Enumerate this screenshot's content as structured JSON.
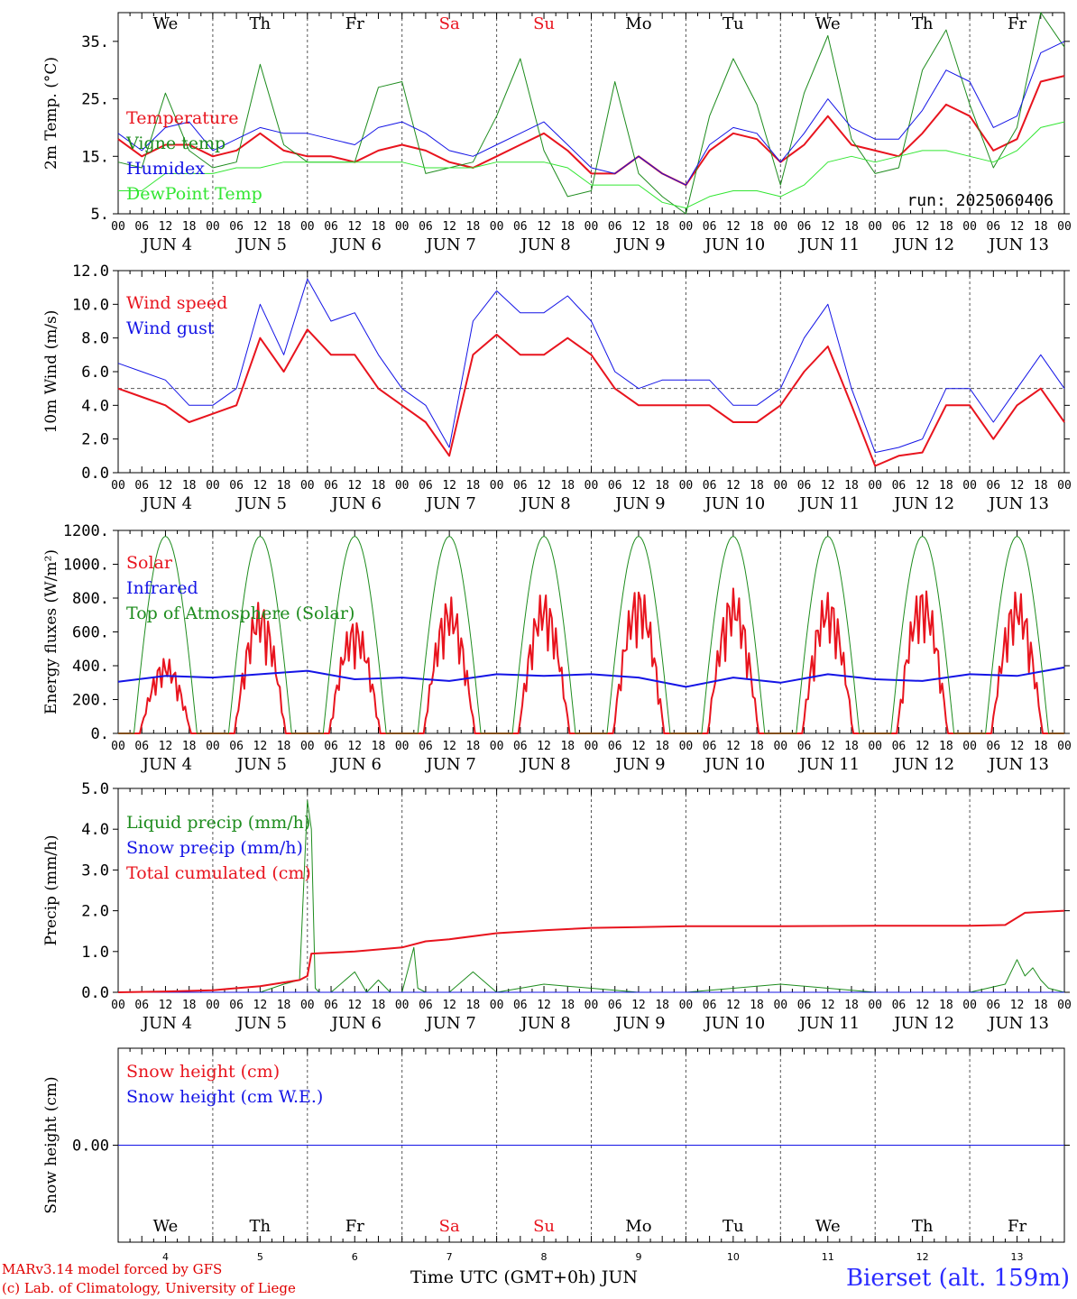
{
  "colors": {
    "red": "#e8141e",
    "green": "#1e8c1e",
    "blue": "#1414e6",
    "lightgreen": "#32e632",
    "axis": "#000000",
    "weekend": "#e8141e"
  },
  "days": [
    "We",
    "Th",
    "Fr",
    "Sa",
    "Su",
    "Mo",
    "Tu",
    "We",
    "Th",
    "Fr"
  ],
  "weekend_days": [
    3,
    4
  ],
  "hour_ticks": [
    "00",
    "06",
    "12",
    "18"
  ],
  "date_labels": [
    "JUN  4",
    "JUN  5",
    "JUN  6",
    "JUN  7",
    "JUN  8",
    "JUN  9",
    "JUN 10",
    "JUN 11",
    "JUN 12",
    "JUN 13"
  ],
  "bottom_day_numbers": [
    "4",
    "5",
    "6",
    "7",
    "8",
    "9",
    "10",
    "11",
    "12",
    "13"
  ],
  "footer": {
    "credit_line1": "MARv3.14 model forced by GFS",
    "credit_line2": "(c) Lab. of Climatology, University of Liege",
    "xlabel": "Time UTC (GMT+0h)",
    "month": "JUN",
    "station": "Bierset (alt. 159m)"
  },
  "chart_data": [
    {
      "type": "line",
      "ylabel": "2m Temp. (°C)",
      "ylim": [
        5,
        40
      ],
      "yticks": [
        5,
        15,
        25,
        35
      ],
      "ytick_labels": [
        "5.",
        "15.",
        "25.",
        "35."
      ],
      "annotation": "run: 2025060406",
      "x_unit": "hours since 2025-06-04 00 UTC",
      "series": [
        {
          "name": "Temperature",
          "color": "red",
          "width": 2,
          "x": [
            0,
            6,
            12,
            18,
            24,
            30,
            36,
            42,
            48,
            54,
            60,
            66,
            72,
            78,
            84,
            90,
            96,
            102,
            108,
            114,
            120,
            126,
            132,
            138,
            144,
            150,
            156,
            162,
            168,
            174,
            180,
            186,
            192,
            198,
            204,
            210,
            216,
            222,
            228,
            234,
            240
          ],
          "values": [
            18,
            15,
            17,
            17,
            15,
            16,
            19,
            16,
            15,
            15,
            14,
            16,
            17,
            16,
            14,
            13,
            15,
            17,
            19,
            16,
            12,
            12,
            15,
            12,
            10,
            16,
            19,
            18,
            14,
            17,
            22,
            17,
            16,
            15,
            19,
            24,
            22,
            16,
            18,
            28,
            29
          ]
        },
        {
          "name": "Vigne temp",
          "color": "green",
          "width": 1,
          "x": [
            0,
            6,
            12,
            18,
            24,
            30,
            36,
            42,
            48,
            54,
            60,
            66,
            72,
            78,
            84,
            90,
            96,
            102,
            108,
            114,
            120,
            126,
            132,
            138,
            144,
            150,
            156,
            162,
            168,
            174,
            180,
            186,
            192,
            198,
            204,
            210,
            216,
            222,
            228,
            234,
            240
          ],
          "values": [
            14,
            13,
            26,
            16,
            13,
            14,
            31,
            17,
            14,
            14,
            14,
            27,
            28,
            12,
            13,
            14,
            22,
            32,
            16,
            8,
            9,
            28,
            12,
            8,
            5,
            22,
            32,
            24,
            10,
            26,
            36,
            18,
            12,
            13,
            30,
            37,
            24,
            13,
            20,
            40,
            34
          ]
        },
        {
          "name": "Humidex",
          "color": "blue",
          "width": 1,
          "x": [
            0,
            6,
            12,
            18,
            24,
            30,
            36,
            42,
            48,
            54,
            60,
            66,
            72,
            78,
            84,
            90,
            96,
            102,
            108,
            114,
            120,
            126,
            132,
            138,
            144,
            150,
            156,
            162,
            168,
            174,
            180,
            186,
            192,
            198,
            204,
            210,
            216,
            222,
            228,
            234,
            240
          ],
          "values": [
            19,
            16,
            20,
            21,
            16,
            18,
            20,
            19,
            19,
            18,
            17,
            20,
            21,
            19,
            16,
            15,
            17,
            19,
            21,
            17,
            13,
            12,
            15,
            12,
            10,
            17,
            20,
            19,
            14,
            19,
            25,
            20,
            18,
            18,
            23,
            30,
            28,
            20,
            22,
            33,
            35
          ]
        },
        {
          "name": "DewPoint Temp",
          "color": "lightgreen",
          "width": 1,
          "x": [
            0,
            6,
            12,
            18,
            24,
            30,
            36,
            42,
            48,
            54,
            60,
            66,
            72,
            78,
            84,
            90,
            96,
            102,
            108,
            114,
            120,
            126,
            132,
            138,
            144,
            150,
            156,
            162,
            168,
            174,
            180,
            186,
            192,
            198,
            204,
            210,
            216,
            222,
            228,
            234,
            240
          ],
          "values": [
            9,
            9,
            12,
            12,
            12,
            13,
            13,
            14,
            14,
            14,
            14,
            14,
            14,
            13,
            13,
            13,
            14,
            14,
            14,
            13,
            10,
            10,
            10,
            7,
            6,
            8,
            9,
            9,
            8,
            10,
            14,
            15,
            14,
            15,
            16,
            16,
            15,
            14,
            16,
            20,
            21
          ]
        }
      ]
    },
    {
      "type": "line",
      "ylabel": "10m Wind (m/s)",
      "ylim": [
        0,
        12
      ],
      "yticks": [
        0,
        2,
        4,
        6,
        8,
        10,
        12
      ],
      "ytick_labels": [
        "0.0",
        "2.0",
        "4.0",
        "6.0",
        "8.0",
        "10.0",
        "12.0"
      ],
      "reference_line": 5,
      "series": [
        {
          "name": "Wind speed",
          "color": "red",
          "width": 2,
          "x": [
            0,
            6,
            12,
            18,
            24,
            30,
            36,
            42,
            48,
            54,
            60,
            66,
            72,
            78,
            84,
            90,
            96,
            102,
            108,
            114,
            120,
            126,
            132,
            138,
            144,
            150,
            156,
            162,
            168,
            174,
            180,
            186,
            192,
            198,
            204,
            210,
            216,
            222,
            228,
            234,
            240
          ],
          "values": [
            5,
            4.5,
            4,
            3,
            3.5,
            4,
            8,
            6,
            8.5,
            7,
            7,
            5,
            4,
            3,
            1,
            7,
            8.2,
            7,
            7,
            8,
            7,
            5,
            4,
            4,
            4,
            4,
            3,
            3,
            4,
            6,
            7.5,
            4,
            0.4,
            1,
            1.2,
            4,
            4,
            2,
            4,
            5,
            3
          ]
        },
        {
          "name": "Wind gust",
          "color": "blue",
          "width": 1,
          "x": [
            0,
            6,
            12,
            18,
            24,
            30,
            36,
            42,
            48,
            54,
            60,
            66,
            72,
            78,
            84,
            90,
            96,
            102,
            108,
            114,
            120,
            126,
            132,
            138,
            144,
            150,
            156,
            162,
            168,
            174,
            180,
            186,
            192,
            198,
            204,
            210,
            216,
            222,
            228,
            234,
            240
          ],
          "values": [
            6.5,
            6,
            5.5,
            4,
            4,
            5,
            10,
            7,
            11.5,
            9,
            9.5,
            7,
            5,
            4,
            1.5,
            9,
            10.8,
            9.5,
            9.5,
            10.5,
            9,
            6,
            5,
            5.5,
            5.5,
            5.5,
            4,
            4,
            5,
            8,
            10,
            5,
            1.2,
            1.5,
            2,
            5,
            5,
            3,
            5,
            7,
            5
          ]
        }
      ]
    },
    {
      "type": "line",
      "ylabel": "Energy fluxes (W/m²)",
      "ylim": [
        0,
        1200
      ],
      "yticks": [
        0,
        200,
        400,
        600,
        800,
        1000,
        1200
      ],
      "ytick_labels": [
        "0.",
        "200.",
        "400.",
        "600.",
        "800.",
        "1000.",
        "1200."
      ],
      "series": [
        {
          "name": "Solar",
          "color": "red",
          "width": 2,
          "daily_peaks": [
            450,
            780,
            680,
            810,
            840,
            880,
            860,
            840,
            880,
            850
          ]
        },
        {
          "name": "Infrared",
          "color": "blue",
          "width": 2,
          "x": [
            0,
            12,
            24,
            36,
            48,
            60,
            72,
            84,
            96,
            108,
            120,
            132,
            144,
            156,
            168,
            180,
            192,
            204,
            216,
            228,
            240
          ],
          "values": [
            305,
            340,
            330,
            350,
            370,
            320,
            330,
            310,
            350,
            340,
            350,
            330,
            275,
            330,
            300,
            350,
            320,
            310,
            350,
            340,
            390
          ]
        },
        {
          "name": "Top of Atmosphere (Solar)",
          "color": "green",
          "width": 1,
          "daily_peaks": [
            1165,
            1165,
            1165,
            1165,
            1165,
            1165,
            1165,
            1165,
            1165,
            1165
          ]
        }
      ]
    },
    {
      "type": "line",
      "ylabel": "Precip (mm/h)",
      "ylim": [
        0,
        5
      ],
      "yticks": [
        0,
        1,
        2,
        3,
        4,
        5
      ],
      "ytick_labels": [
        "0.0",
        "1.0",
        "2.0",
        "3.0",
        "4.0",
        "5.0"
      ],
      "series": [
        {
          "name": "Liquid precip (mm/h)",
          "color": "green",
          "width": 1,
          "x": [
            0,
            36,
            42,
            46,
            48,
            49,
            50,
            51,
            54,
            60,
            63,
            66,
            69,
            72,
            75,
            76,
            78,
            80,
            84,
            90,
            96,
            108,
            120,
            132,
            144,
            168,
            192,
            216,
            225,
            228,
            230,
            232,
            234,
            236,
            240
          ],
          "values": [
            0,
            0,
            0.2,
            0.3,
            4.7,
            4.0,
            0.1,
            0,
            0,
            0.5,
            0,
            0.3,
            0,
            0,
            1.1,
            0.1,
            0,
            0,
            0,
            0.5,
            0,
            0.2,
            0.1,
            0,
            0,
            0.2,
            0,
            0,
            0.2,
            0.8,
            0.4,
            0.6,
            0.3,
            0.1,
            0
          ]
        },
        {
          "name": "Snow precip (mm/h)",
          "color": "blue",
          "width": 1,
          "x": [
            0,
            240
          ],
          "values": [
            0,
            0
          ]
        },
        {
          "name": "Total cumulated (cm)",
          "color": "red",
          "width": 2,
          "x": [
            0,
            12,
            24,
            36,
            46,
            48,
            49,
            60,
            72,
            78,
            84,
            96,
            108,
            120,
            132,
            144,
            168,
            192,
            216,
            225,
            230,
            240
          ],
          "values": [
            0,
            0.02,
            0.05,
            0.15,
            0.3,
            0.4,
            0.95,
            1.0,
            1.1,
            1.25,
            1.3,
            1.45,
            1.52,
            1.58,
            1.6,
            1.62,
            1.62,
            1.63,
            1.63,
            1.65,
            1.95,
            2.0
          ]
        }
      ]
    },
    {
      "type": "line",
      "ylabel": "Snow height (cm)",
      "yticks": [
        0
      ],
      "ytick_labels": [
        "0.00"
      ],
      "series": [
        {
          "name": "Snow height (cm)",
          "color": "red",
          "width": 1,
          "x": [
            0,
            240
          ],
          "values": [
            0,
            0
          ]
        },
        {
          "name": "Snow height (cm W.E.)",
          "color": "blue",
          "width": 1,
          "x": [
            0,
            240
          ],
          "values": [
            0,
            0
          ]
        }
      ]
    }
  ]
}
